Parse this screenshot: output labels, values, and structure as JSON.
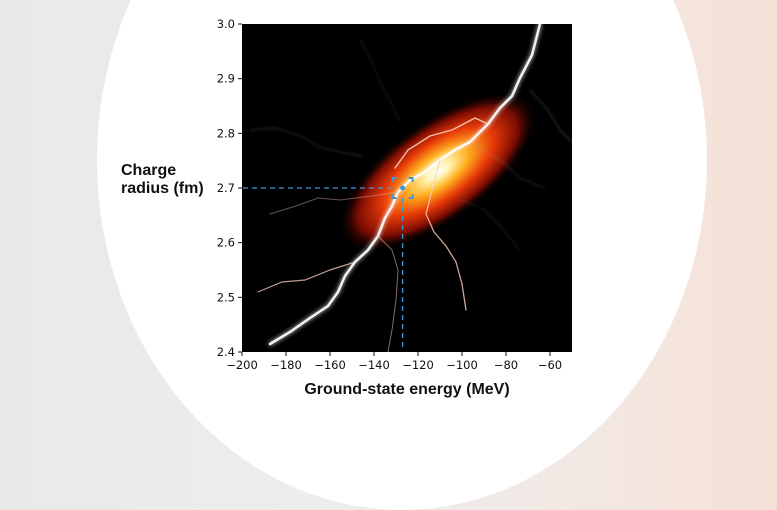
{
  "chart_data": {
    "type": "heatmap",
    "xlabel": "Ground-state energy (MeV)",
    "ylabel_lines": [
      "Charge",
      "radius (fm)"
    ],
    "xlim": [
      -200,
      -50
    ],
    "ylim": [
      2.4,
      3.0
    ],
    "x_ticks": [
      -200,
      -180,
      -160,
      -140,
      -120,
      -100,
      -80,
      -60
    ],
    "x_tick_labels": [
      "−200",
      "−180",
      "−160",
      "−140",
      "−120",
      "−100",
      "−80",
      "−60"
    ],
    "y_ticks": [
      2.4,
      2.5,
      2.6,
      2.7,
      2.8,
      2.9,
      3.0
    ],
    "y_tick_labels": [
      "2.4",
      "2.5",
      "2.6",
      "2.7",
      "2.8",
      "2.9",
      "3.0"
    ],
    "distribution": {
      "center_x": -111,
      "center_y": 2.73,
      "colormap": "hot",
      "correlation": "positive"
    },
    "marker": {
      "x": -127,
      "y": 2.7,
      "color": "#3a9ad9"
    },
    "grid": false
  }
}
